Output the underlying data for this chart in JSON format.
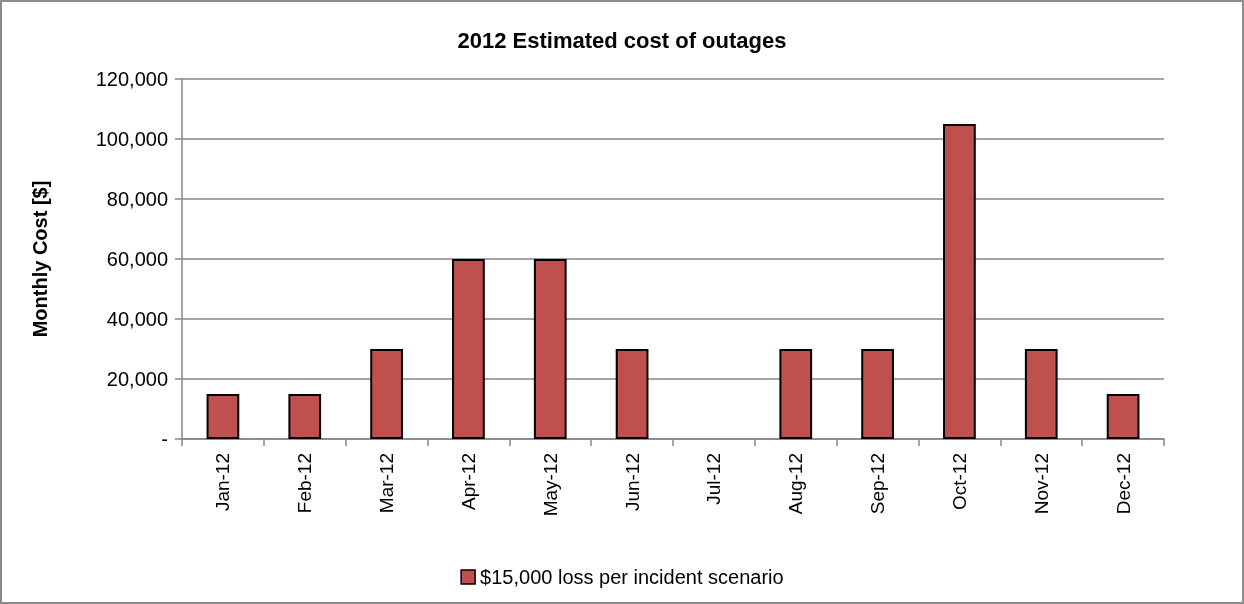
{
  "chart_data": {
    "type": "bar",
    "title": "2012 Estimated cost of outages",
    "ylabel": "Monthly Cost [$]",
    "categories": [
      "Jan-12",
      "Feb-12",
      "Mar-12",
      "Apr-12",
      "May-12",
      "Jun-12",
      "Jul-12",
      "Aug-12",
      "Sep-12",
      "Oct-12",
      "Nov-12",
      "Dec-12"
    ],
    "series": [
      {
        "name": "$15,000 loss per incident scenario",
        "color": "#c0504d",
        "values": [
          15000,
          15000,
          30000,
          60000,
          60000,
          30000,
          0,
          30000,
          30000,
          105000,
          30000,
          15000
        ]
      }
    ],
    "ylim": [
      0,
      120000
    ],
    "yticks": [
      {
        "value": 0,
        "label": "-"
      },
      {
        "value": 20000,
        "label": "20,000"
      },
      {
        "value": 40000,
        "label": "40,000"
      },
      {
        "value": 60000,
        "label": "60,000"
      },
      {
        "value": 80000,
        "label": "80,000"
      },
      {
        "value": 100000,
        "label": "100,000"
      },
      {
        "value": 120000,
        "label": "120,000"
      }
    ],
    "grid": "y",
    "legend": "bottom"
  }
}
